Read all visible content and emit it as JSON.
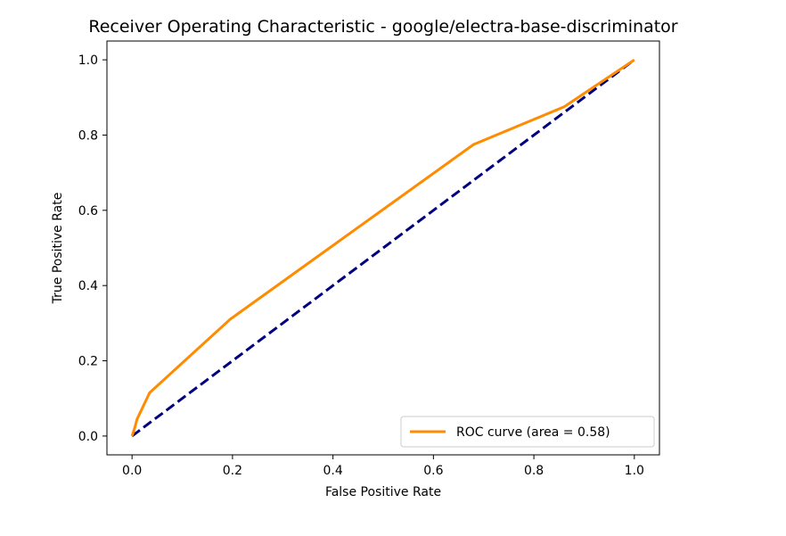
{
  "chart_data": {
    "type": "line",
    "title": "Receiver Operating Characteristic - google/electra-base-discriminator",
    "xlabel": "False Positive Rate",
    "ylabel": "True Positive Rate",
    "xlim": [
      -0.05,
      1.05
    ],
    "ylim": [
      -0.05,
      1.05
    ],
    "xticks": [
      "0.0",
      "0.2",
      "0.4",
      "0.6",
      "0.8",
      "1.0"
    ],
    "yticks": [
      "0.0",
      "0.2",
      "0.4",
      "0.6",
      "0.8",
      "1.0"
    ],
    "grid": false,
    "legend_position": "lower right",
    "series": [
      {
        "name": "ROC curve (area = 0.58)",
        "color": "#ff8c00",
        "style": "solid",
        "x": [
          0.0,
          0.005,
          0.01,
          0.035,
          0.195,
          0.68,
          0.86,
          1.0
        ],
        "y": [
          0.0,
          0.02,
          0.045,
          0.115,
          0.31,
          0.775,
          0.875,
          1.0
        ]
      },
      {
        "color": "#000080",
        "style": "dashed",
        "x": [
          0.0,
          1.0
        ],
        "y": [
          0.0,
          1.0
        ]
      }
    ]
  }
}
